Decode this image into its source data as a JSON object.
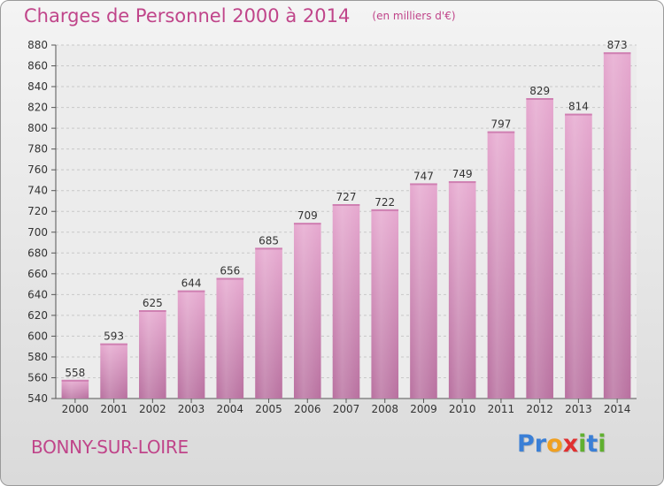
{
  "chart_data": {
    "type": "bar",
    "title": "Charges de Personnel 2000 à 2014",
    "subtitle": "(en milliers d'€)",
    "categories": [
      "2000",
      "2001",
      "2002",
      "2003",
      "2004",
      "2005",
      "2006",
      "2007",
      "2008",
      "2009",
      "2010",
      "2011",
      "2012",
      "2013",
      "2014"
    ],
    "values": [
      558,
      593,
      625,
      644,
      656,
      685,
      709,
      727,
      722,
      747,
      749,
      797,
      829,
      814,
      873
    ],
    "ylim": [
      540,
      880
    ],
    "yticks": [
      540,
      560,
      580,
      600,
      620,
      640,
      660,
      680,
      700,
      720,
      740,
      760,
      780,
      800,
      820,
      840,
      860,
      880
    ],
    "grid": true,
    "bar_color": "#e0a0c8",
    "bar_color_dark": "#b86a9a",
    "title_color": "#c0458a"
  },
  "location": "BONNY-SUR-LOIRE",
  "logo": {
    "letters": [
      {
        "ch": "P",
        "color": "#3a7fd6"
      },
      {
        "ch": "r",
        "color": "#3a7fd6"
      },
      {
        "ch": "o",
        "color": "#f0a020"
      },
      {
        "ch": "x",
        "color": "#e03030"
      },
      {
        "ch": "i",
        "color": "#60b030"
      },
      {
        "ch": "t",
        "color": "#3a7fd6"
      },
      {
        "ch": "i",
        "color": "#60b030"
      }
    ]
  }
}
